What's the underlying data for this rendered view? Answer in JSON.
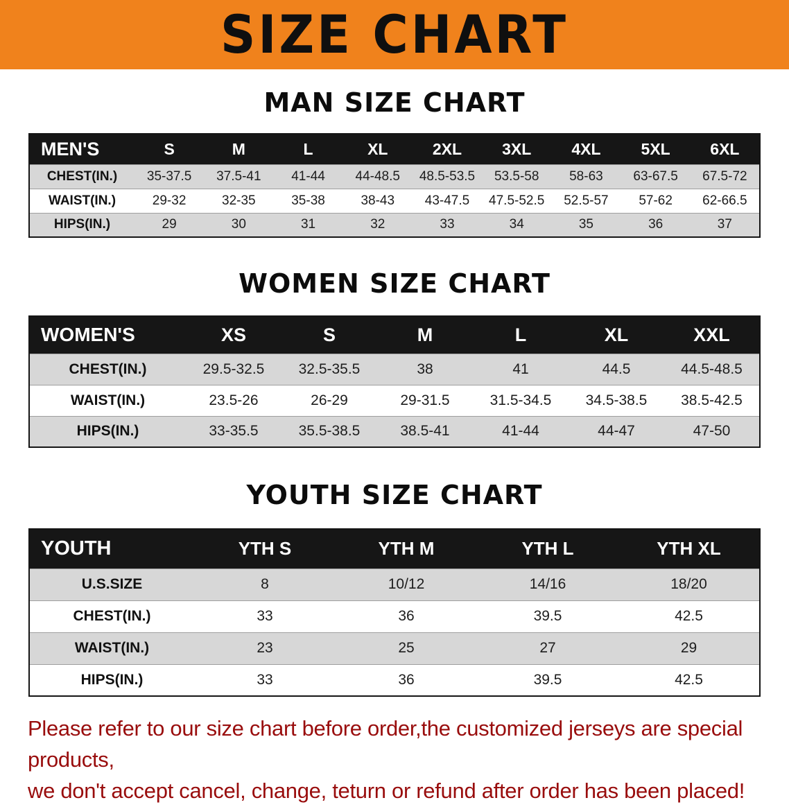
{
  "banner": {
    "title": "SIZE CHART",
    "background_color": "#f0821c",
    "text_color": "#0f0f0f"
  },
  "sections": {
    "men": {
      "heading": "MAN SIZE CHART",
      "table": {
        "header": [
          "MEN'S",
          "S",
          "M",
          "L",
          "XL",
          "2XL",
          "3XL",
          "4XL",
          "5XL",
          "6XL"
        ],
        "rows": [
          [
            "CHEST(IN.)",
            "35-37.5",
            "37.5-41",
            "41-44",
            "44-48.5",
            "48.5-53.5",
            "53.5-58",
            "58-63",
            "63-67.5",
            "67.5-72"
          ],
          [
            "WAIST(IN.)",
            "29-32",
            "32-35",
            "35-38",
            "38-43",
            "43-47.5",
            "47.5-52.5",
            "52.5-57",
            "57-62",
            "62-66.5"
          ],
          [
            "HIPS(IN.)",
            "29",
            "30",
            "31",
            "32",
            "33",
            "34",
            "35",
            "36",
            "37"
          ]
        ]
      }
    },
    "women": {
      "heading": "WOMEN SIZE CHART",
      "table": {
        "header": [
          "WOMEN'S",
          "XS",
          "S",
          "M",
          "L",
          "XL",
          "XXL"
        ],
        "rows": [
          [
            "CHEST(IN.)",
            "29.5-32.5",
            "32.5-35.5",
            "38",
            "41",
            "44.5",
            "44.5-48.5"
          ],
          [
            "WAIST(IN.)",
            "23.5-26",
            "26-29",
            "29-31.5",
            "31.5-34.5",
            "34.5-38.5",
            "38.5-42.5"
          ],
          [
            "HIPS(IN.)",
            "33-35.5",
            "35.5-38.5",
            "38.5-41",
            "41-44",
            "44-47",
            "47-50"
          ]
        ]
      }
    },
    "youth": {
      "heading": "YOUTH SIZE CHART",
      "table": {
        "header": [
          "YOUTH",
          "YTH S",
          "YTH M",
          "YTH L",
          "YTH XL"
        ],
        "rows": [
          [
            "U.S.SIZE",
            "8",
            "10/12",
            "14/16",
            "18/20"
          ],
          [
            "CHEST(IN.)",
            "33",
            "36",
            "39.5",
            "42.5"
          ],
          [
            "WAIST(IN.)",
            "23",
            "25",
            "27",
            "29"
          ],
          [
            "HIPS(IN.)",
            "33",
            "36",
            "39.5",
            "42.5"
          ]
        ]
      }
    }
  },
  "disclaimer": {
    "line1": "Please refer to our size chart before order,the customized jerseys are special products,",
    "line2": "we don't accept cancel, change, teturn or refund after order has been placed!",
    "text_color": "#990d0d"
  },
  "colors": {
    "table_header_bg": "#161616",
    "table_stripe_bg": "#d7d7d7"
  }
}
